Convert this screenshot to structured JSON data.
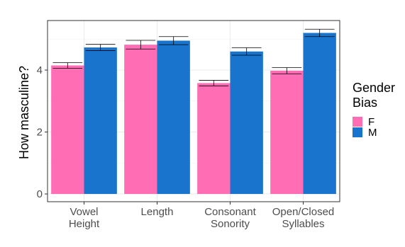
{
  "chart_data": {
    "type": "bar",
    "title": "",
    "xlabel": "",
    "ylabel": "How masculine?",
    "ylim": [
      -0.25,
      5.6
    ],
    "yticks": [
      0,
      2,
      4
    ],
    "grid": true,
    "legend_position": "right",
    "legend_title": [
      "Gender",
      "Bias"
    ],
    "categories": [
      [
        "Vowel",
        "Height"
      ],
      [
        "Length"
      ],
      [
        "Consonant",
        "Sonority"
      ],
      [
        "Open/Closed",
        "Syllables"
      ]
    ],
    "series": [
      {
        "name": "F",
        "color": "#FF6EB4",
        "values": [
          4.15,
          4.82,
          3.58,
          3.98
        ],
        "error": [
          0.09,
          0.14,
          0.09,
          0.1
        ]
      },
      {
        "name": "M",
        "color": "#1874CD",
        "values": [
          4.73,
          4.95,
          4.6,
          5.2
        ],
        "error": [
          0.1,
          0.13,
          0.12,
          0.12
        ]
      }
    ]
  }
}
